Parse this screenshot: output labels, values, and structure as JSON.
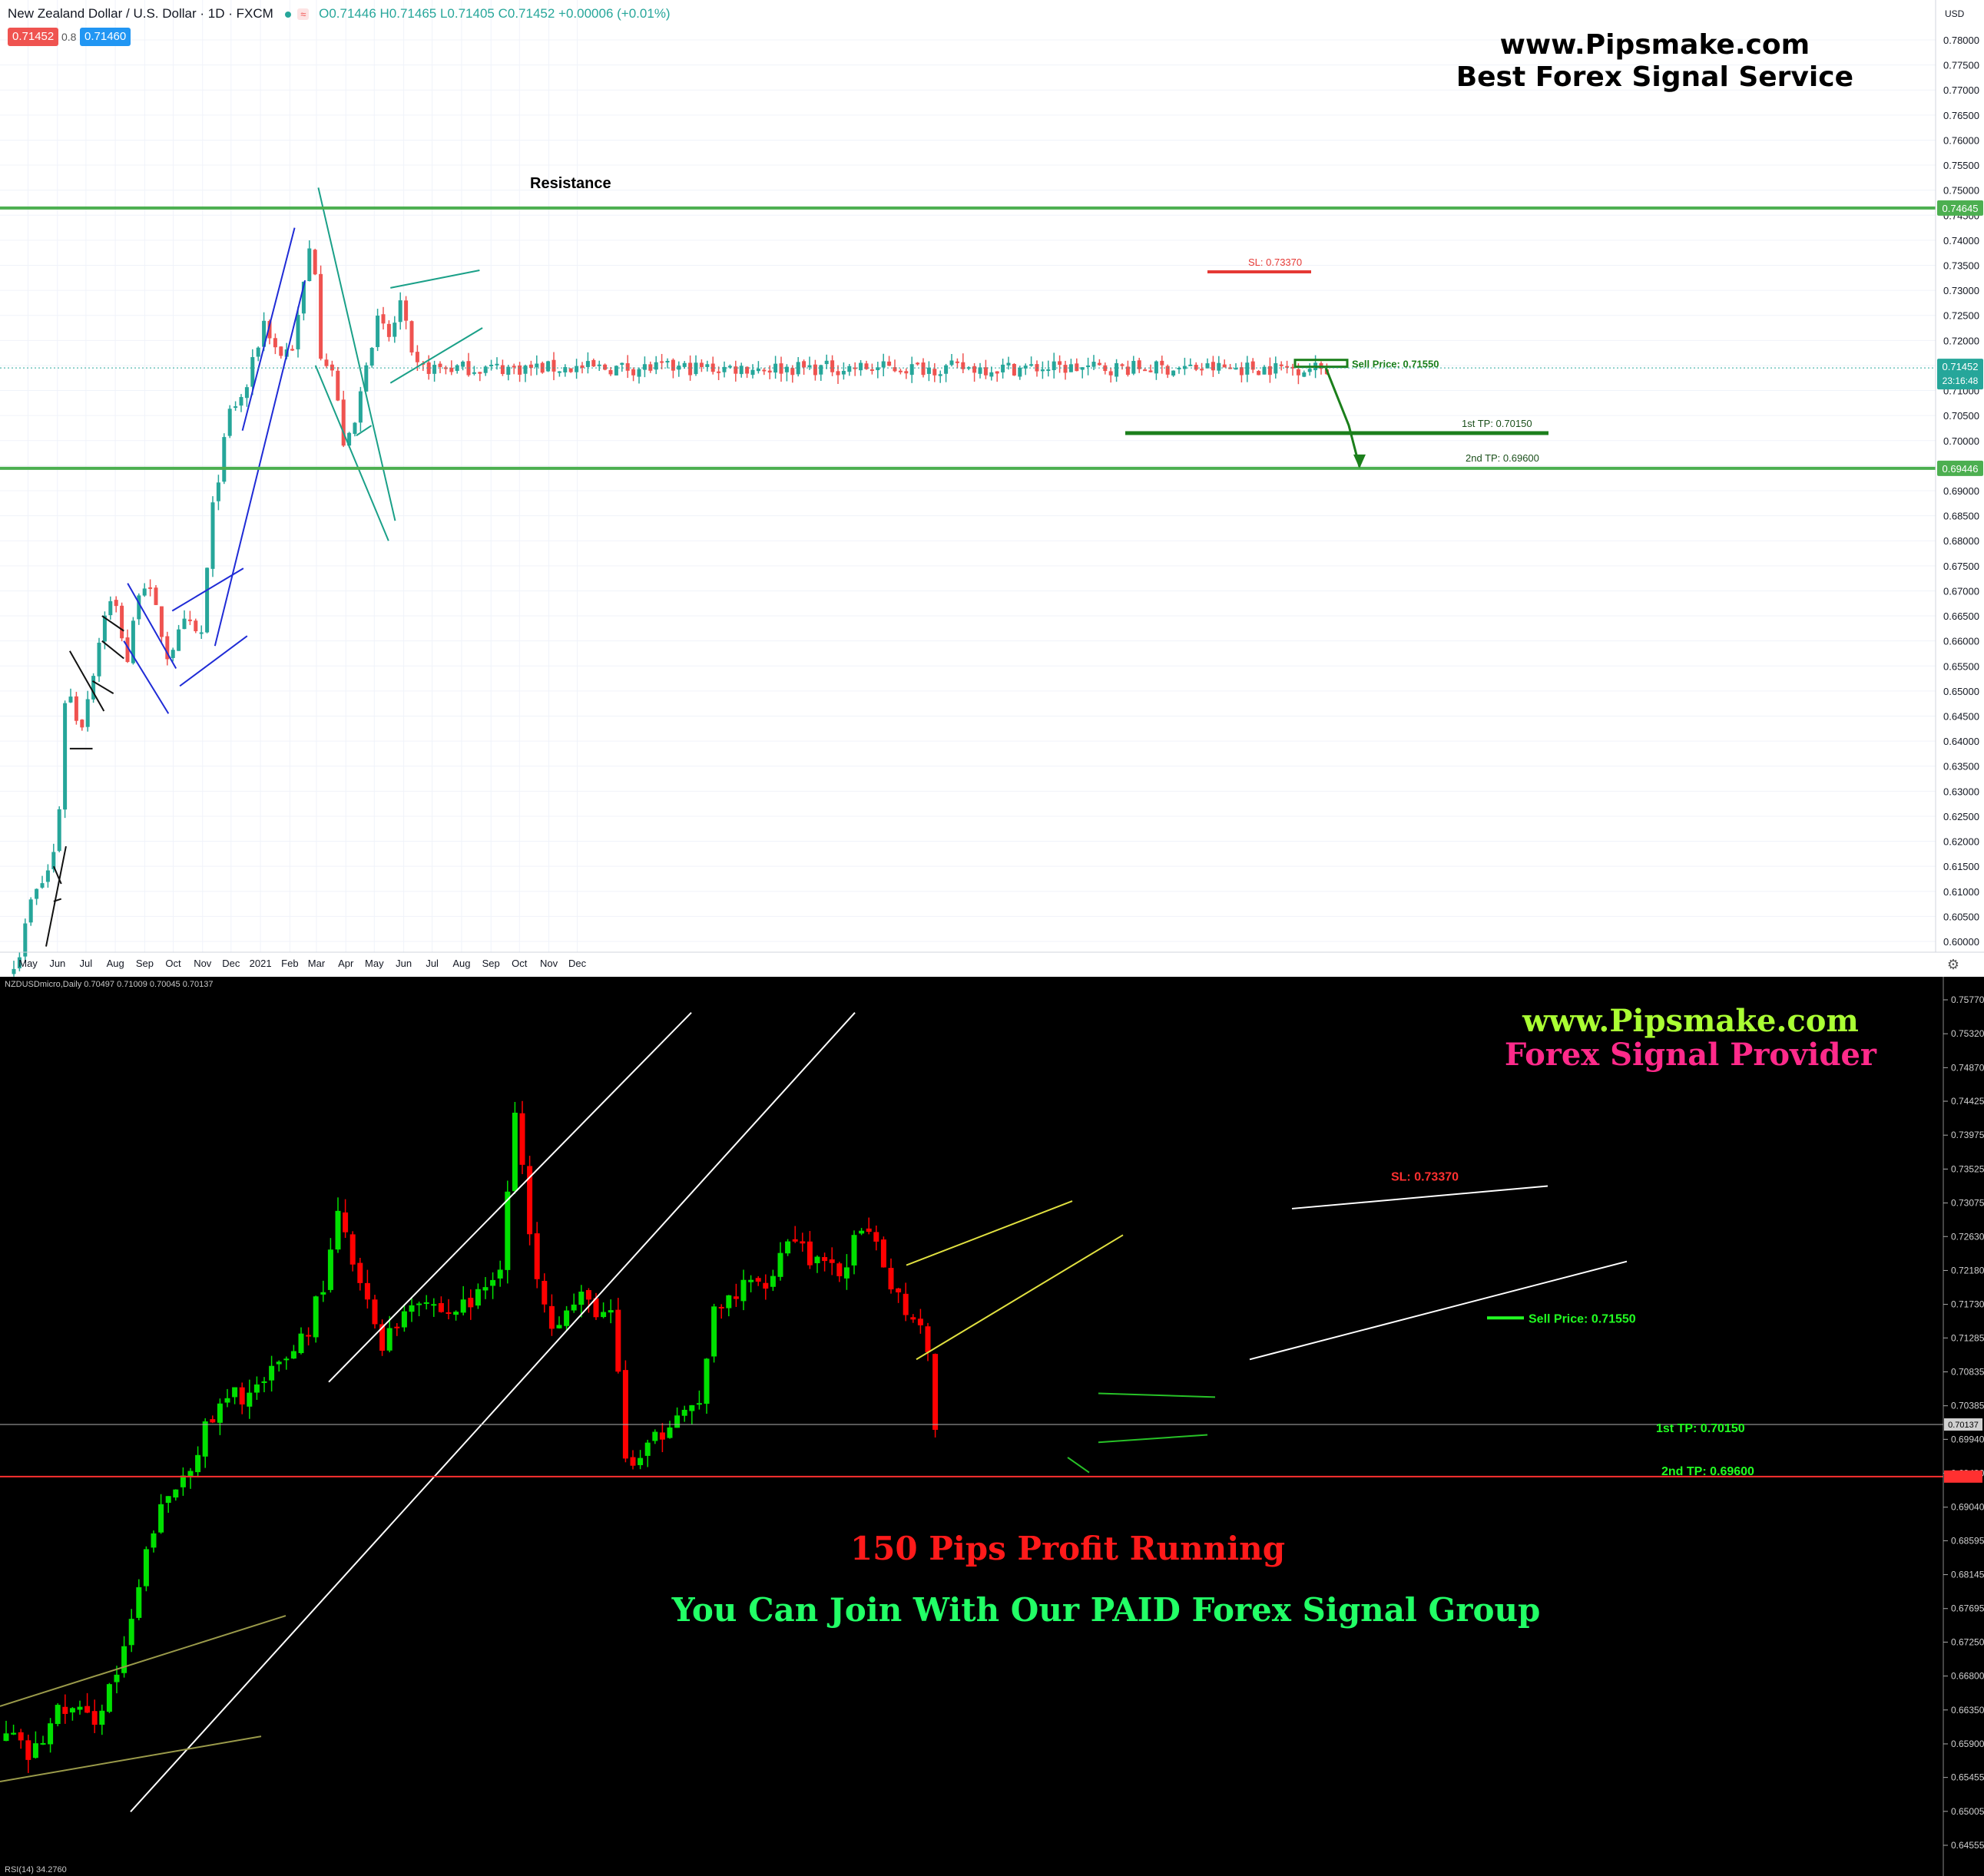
{
  "top_chart": {
    "header": {
      "symbol": "New Zealand Dollar / U.S. Dollar · 1D · FXCM",
      "ohlc": "O0.71446 H0.71465 L0.71405 C0.71452 +0.00006 (+0.01%)"
    },
    "badges": {
      "sell": "0.71452",
      "spread": "0.8",
      "buy": "0.71460"
    },
    "currency": "USD",
    "last_price_badge": "0.71452",
    "countdown": "23:16:48",
    "brand_url": "www.Pipsmake.com",
    "brand_tagline": "Best Forex Signal Service",
    "colors": {
      "up": "#26a69a",
      "down": "#ef5350",
      "level": "#4caf50",
      "tp": "#1b7f1b",
      "sl": "#e53935"
    }
  },
  "bottom_chart": {
    "header": "NZDUSDmicro,Daily  0.70497 0.71009 0.70045 0.70137",
    "rsi_label": "RSI(14) 34.2760",
    "last_price_badge": "0.70137",
    "brand_url": "www.Pipsmake.com",
    "brand_tagline": "Forex Signal Provider",
    "promo_profit": "150 Pips Profit Running",
    "promo_join": "You Can Join With Our PAID Forex Signal Group",
    "colors": {
      "up": "#00e000",
      "down": "#ff0000",
      "brand_url": "#aaff33",
      "brand_tagline": "#ff2a8a"
    }
  },
  "chart_data": [
    {
      "type": "line",
      "subtype": "candlestick",
      "title": "New Zealand Dollar / U.S. Dollar · 1D · FXCM",
      "x_tick_labels": [
        "May",
        "Jun",
        "Jul",
        "Aug",
        "Sep",
        "Oct",
        "Nov",
        "Dec",
        "2021",
        "Feb",
        "Mar",
        "Apr",
        "May",
        "Jun",
        "Jul",
        "Aug",
        "Sep",
        "Oct",
        "Nov",
        "Dec"
      ],
      "y_tick_labels": [
        "0.78000",
        "0.77500",
        "0.77000",
        "0.76500",
        "0.76000",
        "0.75500",
        "0.75000",
        "0.74500",
        "0.74000",
        "0.73500",
        "0.73000",
        "0.72500",
        "0.72000",
        "0.71500",
        "0.71000",
        "0.70500",
        "0.70000",
        "0.69500",
        "0.69000",
        "0.68500",
        "0.68000",
        "0.67500",
        "0.67000",
        "0.66500",
        "0.66000",
        "0.65500",
        "0.65000",
        "0.64500",
        "0.64000",
        "0.63500",
        "0.63000",
        "0.62500",
        "0.62000",
        "0.61500",
        "0.61000",
        "0.60500",
        "0.60000"
      ],
      "ylim": [
        0.5985,
        0.785
      ],
      "grid": true,
      "price_path_close": [
        {
          "x": "2020-04-20",
          "y": 0.596
        },
        {
          "x": "2020-05-04",
          "y": 0.608
        },
        {
          "x": "2020-05-20",
          "y": 0.613
        },
        {
          "x": "2020-06-01",
          "y": 0.62
        },
        {
          "x": "2020-06-10",
          "y": 0.652
        },
        {
          "x": "2020-06-25",
          "y": 0.642
        },
        {
          "x": "2020-07-10",
          "y": 0.655
        },
        {
          "x": "2020-07-22",
          "y": 0.667
        },
        {
          "x": "2020-07-31",
          "y": 0.668
        },
        {
          "x": "2020-08-14",
          "y": 0.656
        },
        {
          "x": "2020-08-28",
          "y": 0.673
        },
        {
          "x": "2020-09-10",
          "y": 0.668
        },
        {
          "x": "2020-09-25",
          "y": 0.657
        },
        {
          "x": "2020-10-15",
          "y": 0.664
        },
        {
          "x": "2020-10-30",
          "y": 0.66
        },
        {
          "x": "2020-11-12",
          "y": 0.687
        },
        {
          "x": "2020-11-30",
          "y": 0.706
        },
        {
          "x": "2020-12-15",
          "y": 0.709
        },
        {
          "x": "2021-01-05",
          "y": 0.724
        },
        {
          "x": "2021-01-20",
          "y": 0.717
        },
        {
          "x": "2021-02-05",
          "y": 0.719
        },
        {
          "x": "2021-02-25",
          "y": 0.742
        },
        {
          "x": "2021-03-05",
          "y": 0.718
        },
        {
          "x": "2021-03-18",
          "y": 0.714
        },
        {
          "x": "2021-03-31",
          "y": 0.698
        },
        {
          "x": "2021-04-12",
          "y": 0.704
        },
        {
          "x": "2021-04-22",
          "y": 0.716
        },
        {
          "x": "2021-05-05",
          "y": 0.724
        },
        {
          "x": "2021-05-18",
          "y": 0.72
        },
        {
          "x": "2021-05-28",
          "y": 0.728
        },
        {
          "x": "2021-06-04",
          "y": 0.722
        },
        {
          "x": "2021-06-11",
          "y": 0.7145
        }
      ],
      "levels": [
        {
          "label": "Resistance",
          "value": 0.74645
        },
        {
          "label": "0.69446",
          "value": 0.69446
        }
      ],
      "annotations": [
        {
          "label": "SL: 0.73370",
          "value": 0.7337
        },
        {
          "label": "Sell Price: 0.71550",
          "value": 0.7155
        },
        {
          "label": "1st TP: 0.70150",
          "value": 0.7015
        },
        {
          "label": "2nd TP: 0.69600",
          "value": 0.696
        }
      ],
      "price_badges": [
        "0.74645",
        "0.69446",
        "0.71452"
      ]
    },
    {
      "type": "line",
      "subtype": "candlestick",
      "title": "NZDUSDmicro,Daily",
      "y_tick_labels": [
        "0.75770",
        "0.75320",
        "0.74870",
        "0.74425",
        "0.73975",
        "0.73525",
        "0.73075",
        "0.72630",
        "0.72180",
        "0.71730",
        "0.71285",
        "0.70835",
        "0.70385",
        "0.69940",
        "0.69490",
        "0.69040",
        "0.68595",
        "0.68145",
        "0.67695",
        "0.67250",
        "0.66800",
        "0.66350",
        "0.65900",
        "0.65455",
        "0.65005",
        "0.64555"
      ],
      "ylim": [
        0.643,
        0.76
      ],
      "price_path_close": [
        {
          "x": 0,
          "y": 0.661
        },
        {
          "x": 40,
          "y": 0.657
        },
        {
          "x": 80,
          "y": 0.664
        },
        {
          "x": 120,
          "y": 0.662
        },
        {
          "x": 160,
          "y": 0.67
        },
        {
          "x": 200,
          "y": 0.688
        },
        {
          "x": 240,
          "y": 0.695
        },
        {
          "x": 270,
          "y": 0.701
        },
        {
          "x": 300,
          "y": 0.705
        },
        {
          "x": 340,
          "y": 0.706
        },
        {
          "x": 370,
          "y": 0.71
        },
        {
          "x": 400,
          "y": 0.714
        },
        {
          "x": 430,
          "y": 0.723
        },
        {
          "x": 440,
          "y": 0.729
        },
        {
          "x": 470,
          "y": 0.719
        },
        {
          "x": 500,
          "y": 0.712
        },
        {
          "x": 540,
          "y": 0.719
        },
        {
          "x": 580,
          "y": 0.716
        },
        {
          "x": 620,
          "y": 0.718
        },
        {
          "x": 650,
          "y": 0.722
        },
        {
          "x": 672,
          "y": 0.744
        },
        {
          "x": 690,
          "y": 0.725
        },
        {
          "x": 720,
          "y": 0.715
        },
        {
          "x": 760,
          "y": 0.718
        },
        {
          "x": 800,
          "y": 0.715
        },
        {
          "x": 812,
          "y": 0.697
        },
        {
          "x": 830,
          "y": 0.696
        },
        {
          "x": 860,
          "y": 0.7
        },
        {
          "x": 880,
          "y": 0.704
        },
        {
          "x": 910,
          "y": 0.703
        },
        {
          "x": 925,
          "y": 0.715
        },
        {
          "x": 960,
          "y": 0.719
        },
        {
          "x": 1000,
          "y": 0.721
        },
        {
          "x": 1030,
          "y": 0.727
        },
        {
          "x": 1060,
          "y": 0.723
        },
        {
          "x": 1090,
          "y": 0.721
        },
        {
          "x": 1120,
          "y": 0.727
        },
        {
          "x": 1150,
          "y": 0.723
        },
        {
          "x": 1175,
          "y": 0.717
        },
        {
          "x": 1195,
          "y": 0.716
        },
        {
          "x": 1210,
          "y": 0.711
        },
        {
          "x": 1218,
          "y": 0.7014
        }
      ],
      "annotations": [
        {
          "label": "SL: 0.73370",
          "value": 0.7337
        },
        {
          "label": "Sell Price: 0.71550",
          "value": 0.7155
        },
        {
          "label": "1st TP: 0.70150",
          "value": 0.7015
        },
        {
          "label": "2nd TP: 0.69600",
          "value": 0.696
        }
      ],
      "price_badges": [
        "0.70137"
      ]
    }
  ]
}
